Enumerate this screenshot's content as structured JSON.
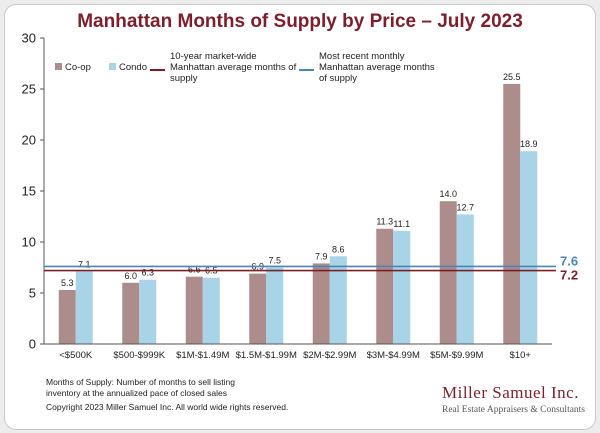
{
  "chart_data": {
    "type": "bar",
    "title": "Manhattan Months of Supply by Price – July 2023",
    "categories": [
      "<$500K",
      "$500-$999K",
      "$1M-$1.49M",
      "$1.5M-$1.99M",
      "$2M-$2.99M",
      "$3M-$4.99M",
      "$5M-$9.99M",
      "$10+"
    ],
    "series": [
      {
        "name": "Co-op",
        "color": "#ad8c8c",
        "values": [
          5.3,
          6.0,
          6.6,
          6.9,
          7.9,
          11.3,
          14.0,
          25.5
        ]
      },
      {
        "name": "Condo",
        "color": "#a9d3e6",
        "values": [
          7.1,
          6.3,
          6.5,
          7.5,
          8.6,
          11.1,
          12.7,
          18.9
        ]
      }
    ],
    "data_labels": {
      "Co-op": [
        "5.3",
        "6.0",
        "6.6",
        "6.9",
        "7.9",
        "11.3",
        "14.0",
        "25.5"
      ],
      "Condo": [
        "7.1",
        "6.3",
        "6.5",
        "7.5",
        "8.6",
        "11.1",
        "12.7",
        "18.9"
      ]
    },
    "ylim": [
      0,
      30
    ],
    "yticks": [
      0,
      5,
      10,
      15,
      20,
      25,
      30
    ],
    "xlabel": "",
    "ylabel": "",
    "grid": false,
    "legend": "top-left",
    "reference_lines": [
      {
        "legend_lines": [
          "10-year market-wide",
          "Manhattan average months of",
          "supply"
        ],
        "value": 7.2,
        "label": "7.2",
        "color": "#7a1f2b"
      },
      {
        "legend_lines": [
          "Most recent monthly",
          "Manhattan average months",
          "of supply"
        ],
        "value": 7.6,
        "label": "7.6",
        "color": "#4a86b0"
      }
    ]
  },
  "footnote": {
    "line1": "Months of Supply: Number of months to sell listing",
    "line2": "inventory at the annualized pace of closed sales",
    "copyright": "Copyright 2023 Miller Samuel Inc.  All world wide rights reserved."
  },
  "brand": {
    "name": "Miller Samuel Inc.",
    "tagline": "Real Estate Appraisers & Consultants"
  }
}
